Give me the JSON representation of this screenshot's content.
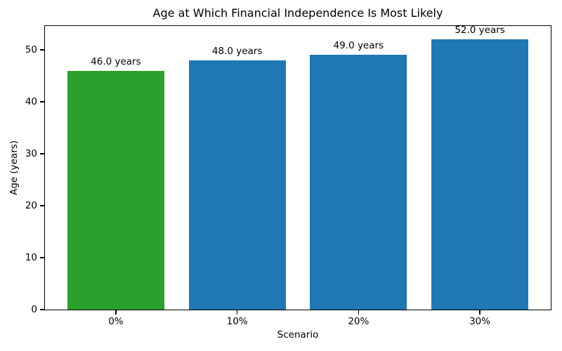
{
  "figure": {
    "background_color": "#ffffff",
    "text_color": "#000000",
    "spine_color": "#000000"
  },
  "chart_data": {
    "type": "bar",
    "title": "Age at Which Financial Independence Is Most Likely",
    "xlabel": "Scenario",
    "ylabel": "Age (years)",
    "categories": [
      "0%",
      "10%",
      "20%",
      "30%"
    ],
    "values": [
      46.0,
      48.0,
      49.0,
      52.0
    ],
    "bar_labels": [
      "46.0 years",
      "48.0 years",
      "49.0 years",
      "52.0 years"
    ],
    "bar_colors": [
      "#2ca02c",
      "#1f77b4",
      "#1f77b4",
      "#1f77b4"
    ],
    "ylim": [
      0,
      54.6
    ],
    "yticks": [
      0,
      10,
      20,
      30,
      40,
      50
    ],
    "grid": false,
    "legend": null
  }
}
